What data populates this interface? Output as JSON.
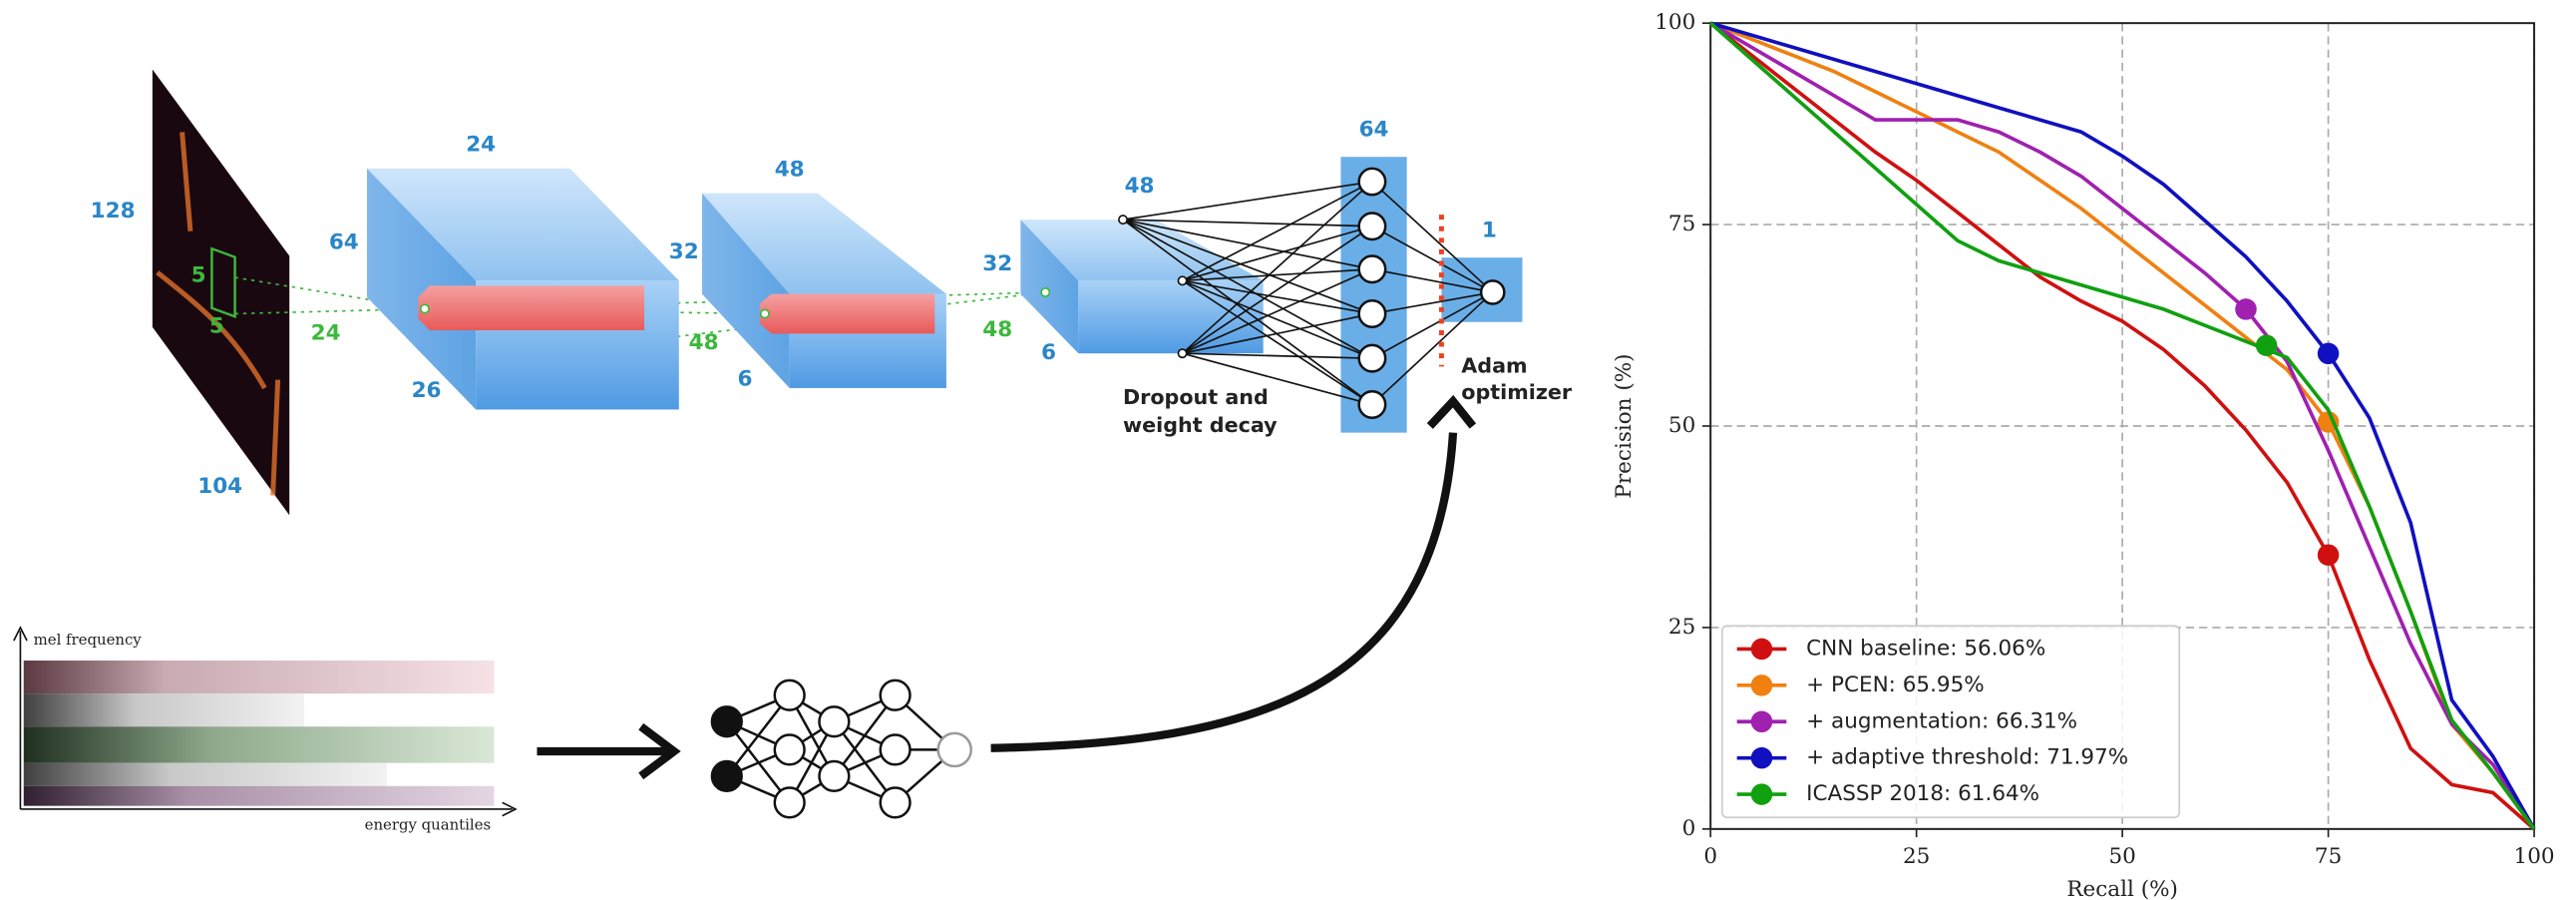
{
  "diagram": {
    "labels": [
      "128",
      "104",
      "5",
      "5",
      "24",
      "24",
      "64",
      "26",
      "48",
      "32",
      "6",
      "48",
      "48",
      "32",
      "6",
      "48",
      "64",
      "1",
      "Dropout and",
      "weight decay",
      "Adam",
      "optimizer",
      "mel frequency",
      "energy quantiles"
    ]
  },
  "chart_data": {
    "type": "line",
    "xlabel": "Recall (%)",
    "ylabel": "Precision (%)",
    "x": [
      0,
      5,
      10,
      15,
      20,
      25,
      30,
      35,
      40,
      45,
      50,
      55,
      60,
      65,
      70,
      75,
      80,
      85,
      90,
      95,
      100
    ],
    "xlim": [
      0,
      100
    ],
    "ylim": [
      0,
      100
    ],
    "xticks": [
      0,
      25,
      50,
      75,
      100
    ],
    "yticks": [
      0,
      25,
      50,
      75,
      100
    ],
    "grid": true,
    "legend": "lower left",
    "series": [
      {
        "name": "CNN baseline: 56.06%",
        "color": "#d01010",
        "values": [
          100,
          96,
          92,
          88,
          84,
          80.5,
          76.5,
          72.5,
          68.5,
          65.5,
          63,
          59.5,
          55,
          49.5,
          43,
          34,
          21,
          10,
          5.5,
          4.5,
          0
        ],
        "marker_x": 75,
        "marker_y": 34
      },
      {
        "name": "+ PCEN: 65.95%",
        "color": "#f08010",
        "values": [
          100,
          98,
          96,
          94,
          91.5,
          89,
          86.5,
          84,
          80.5,
          77,
          73,
          69,
          65,
          61,
          57,
          50.5,
          40,
          27,
          13,
          7,
          0
        ],
        "marker_x": 75,
        "marker_y": 50.5
      },
      {
        "name": "+ augmentation: 66.31%",
        "color": "#a020b0",
        "values": [
          100,
          97,
          94,
          91,
          88,
          88,
          88,
          86.5,
          84,
          81,
          77,
          73,
          69,
          64.5,
          58,
          47,
          35,
          23,
          13,
          8,
          0
        ],
        "marker_x": 65,
        "marker_y": 64.5
      },
      {
        "name": "+ adaptive threshold: 71.97%",
        "color": "#1010c0",
        "values": [
          100,
          98.5,
          97,
          95.5,
          94,
          92.5,
          91,
          89.5,
          88,
          86.5,
          83.5,
          80,
          75.5,
          71,
          65.5,
          59,
          51,
          38,
          16,
          9,
          0
        ],
        "marker_x": 75,
        "marker_y": 59
      },
      {
        "name": "ICASSP 2018: 61.64%",
        "color": "#10a010",
        "values": [
          100,
          95.5,
          91,
          86.5,
          82,
          77.5,
          73,
          70.5,
          69,
          67.5,
          66,
          64.5,
          62.5,
          60.5,
          58.5,
          52,
          40,
          27,
          13.5,
          7,
          0
        ],
        "marker_x": 67.5,
        "marker_y": 60
      }
    ]
  }
}
